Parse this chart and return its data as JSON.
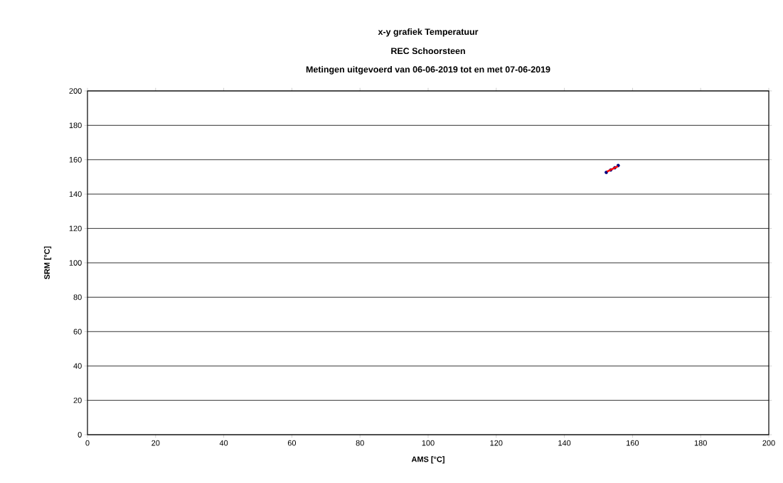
{
  "chart_data": {
    "type": "scatter",
    "title": "x-y grafiek Temperatuur",
    "subtitle": "REC Schoorsteen",
    "annotations": [
      "Metingen uitgevoerd van 06-06-2019 tot en met 07-06-2019"
    ],
    "xlabel": "AMS [°C]",
    "ylabel": "SRM [°C]",
    "xlim": [
      0,
      200
    ],
    "ylim": [
      0,
      200
    ],
    "xticks": [
      0,
      20,
      40,
      60,
      80,
      100,
      120,
      140,
      160,
      180,
      200
    ],
    "yticks": [
      0,
      20,
      40,
      60,
      80,
      100,
      120,
      140,
      160,
      180,
      200
    ],
    "grid": "y",
    "series": [
      {
        "color": "#000080",
        "marker": "circle",
        "x": [
          152.3,
          153.6,
          154.8,
          155.8
        ],
        "values": [
          152.6,
          154.0,
          155.3,
          156.6
        ]
      },
      {
        "type": "line",
        "marker": "none",
        "color": "#ff0000",
        "x": [
          152.5,
          155.7
        ],
        "values": [
          153.0,
          156.1
        ]
      }
    ]
  }
}
